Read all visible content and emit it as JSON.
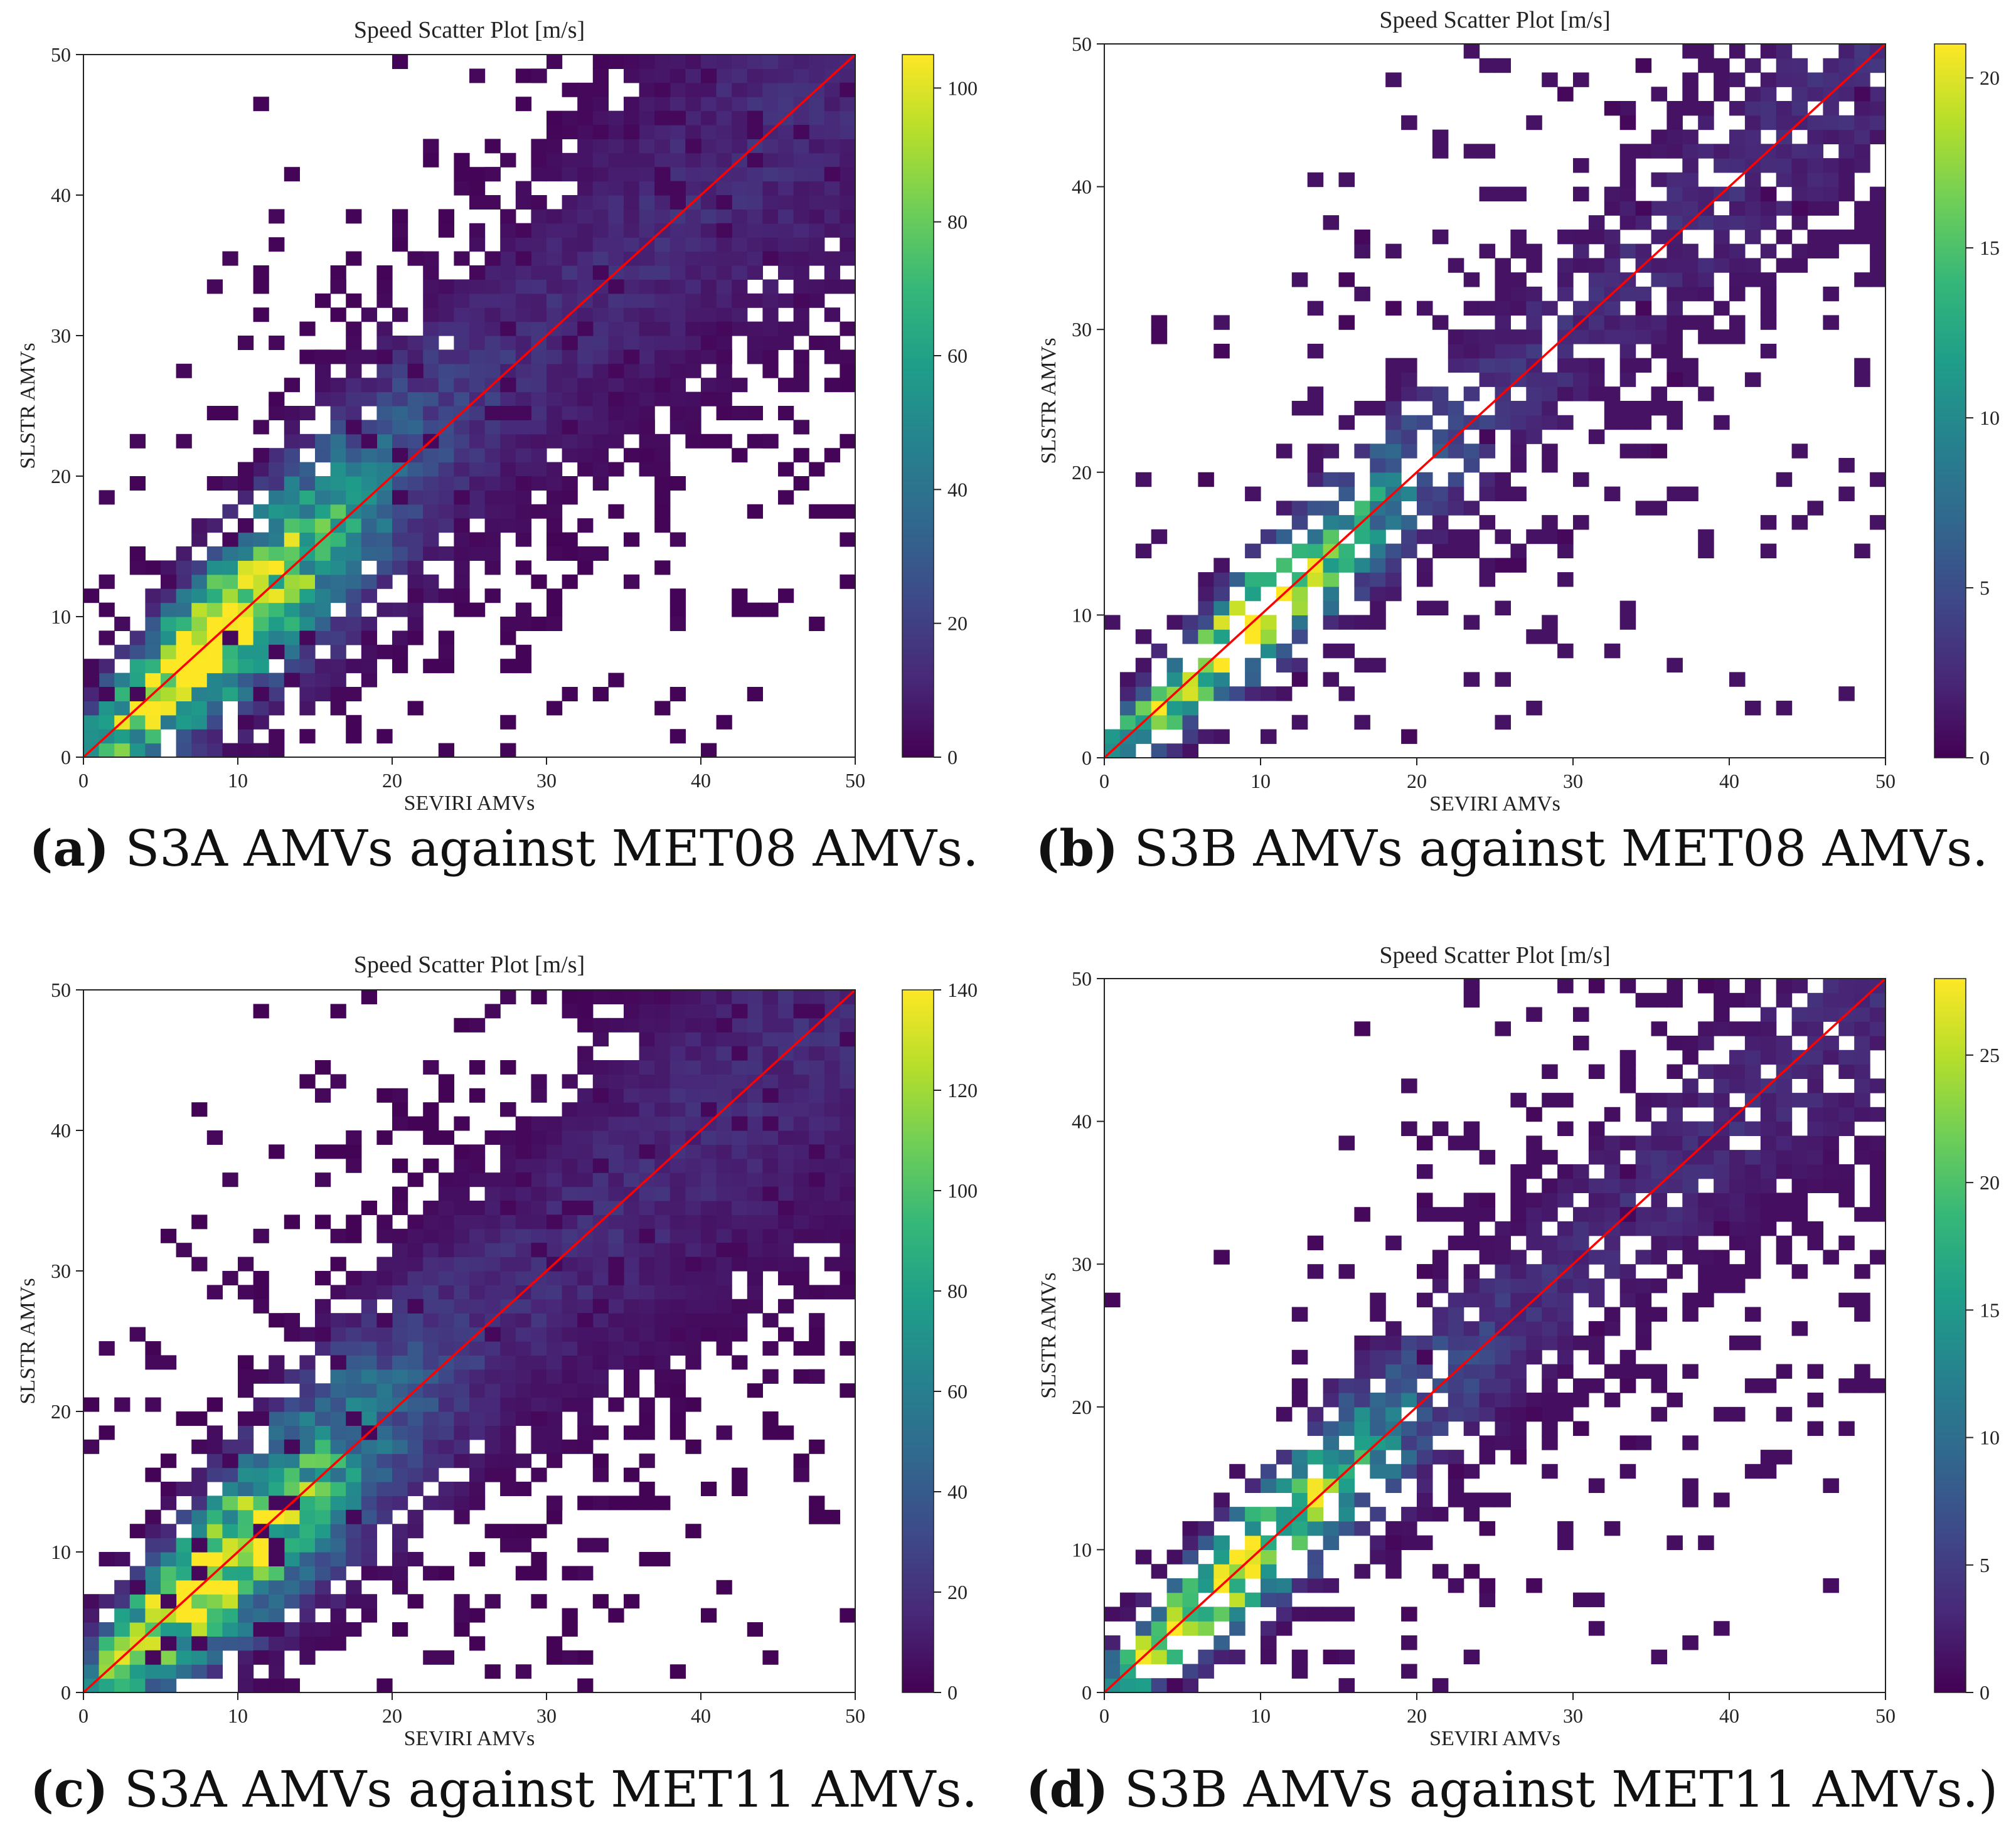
{
  "colormap": {
    "name": "viridis",
    "stops": [
      "#440154",
      "#482878",
      "#3e4989",
      "#31688e",
      "#26828e",
      "#1f9e89",
      "#35b779",
      "#6ece58",
      "#b5de2b",
      "#fde725"
    ]
  },
  "line_color": "#ff0000",
  "chart_data": [
    {
      "type": "heatmap",
      "title": "Speed Scatter Plot [m/s]",
      "xlabel": "SEVIRI AMVs",
      "ylabel": "SLSTR AMVs",
      "xlim": [
        0,
        50
      ],
      "ylim": [
        0,
        50
      ],
      "xticks": [
        0,
        10,
        20,
        30,
        40,
        50
      ],
      "yticks": [
        0,
        10,
        20,
        30,
        40,
        50
      ],
      "bins": 50,
      "vmax": 105,
      "colorbar_ticks": [
        0,
        20,
        40,
        60,
        80,
        100
      ],
      "peak_density": 105,
      "density_spread": 2.3,
      "fill_fraction": 0.62,
      "outlier_count": 160,
      "seed": 11,
      "caption_label": "(a)",
      "caption_text": " S3A AMVs against MET08 AMVs."
    },
    {
      "type": "heatmap",
      "title": "Speed Scatter Plot [m/s]",
      "xlabel": "SEVIRI AMVs",
      "ylabel": "SLSTR AMVs",
      "xlim": [
        0,
        50
      ],
      "ylim": [
        0,
        50
      ],
      "xticks": [
        0,
        10,
        20,
        30,
        40,
        50
      ],
      "yticks": [
        0,
        10,
        20,
        30,
        40,
        50
      ],
      "bins": 50,
      "vmax": 21,
      "colorbar_ticks": [
        0,
        5,
        10,
        15,
        20
      ],
      "peak_density": 21,
      "density_spread": 1.5,
      "fill_fraction": 0.38,
      "outlier_count": 30,
      "seed": 23,
      "caption_label": "(b)",
      "caption_text": " S3B AMVs against MET08 AMVs."
    },
    {
      "type": "heatmap",
      "title": "Speed Scatter Plot [m/s]",
      "xlabel": "SEVIRI AMVs",
      "ylabel": "SLSTR AMVs",
      "xlim": [
        0,
        50
      ],
      "ylim": [
        0,
        50
      ],
      "xticks": [
        0,
        10,
        20,
        30,
        40,
        50
      ],
      "yticks": [
        0,
        10,
        20,
        30,
        40,
        50
      ],
      "bins": 50,
      "vmax": 140,
      "colorbar_ticks": [
        0,
        20,
        40,
        60,
        80,
        100,
        120,
        140
      ],
      "peak_density": 138,
      "density_spread": 2.3,
      "fill_fraction": 0.66,
      "outlier_count": 180,
      "seed": 37,
      "caption_label": "(c)",
      "caption_text": " S3A AMVs against MET11 AMVs."
    },
    {
      "type": "heatmap",
      "title": "Speed Scatter Plot [m/s]",
      "xlabel": "SEVIRI AMVs",
      "ylabel": "SLSTR AMVs",
      "xlim": [
        0,
        50
      ],
      "ylim": [
        0,
        50
      ],
      "xticks": [
        0,
        10,
        20,
        30,
        40,
        50
      ],
      "yticks": [
        0,
        10,
        20,
        30,
        40,
        50
      ],
      "bins": 50,
      "vmax": 28,
      "colorbar_ticks": [
        0,
        5,
        10,
        15,
        20,
        25
      ],
      "peak_density": 27,
      "density_spread": 1.6,
      "fill_fraction": 0.4,
      "outlier_count": 40,
      "seed": 53,
      "caption_label": "(d)",
      "caption_text": " S3B AMVs against MET11 AMVs.)"
    }
  ]
}
